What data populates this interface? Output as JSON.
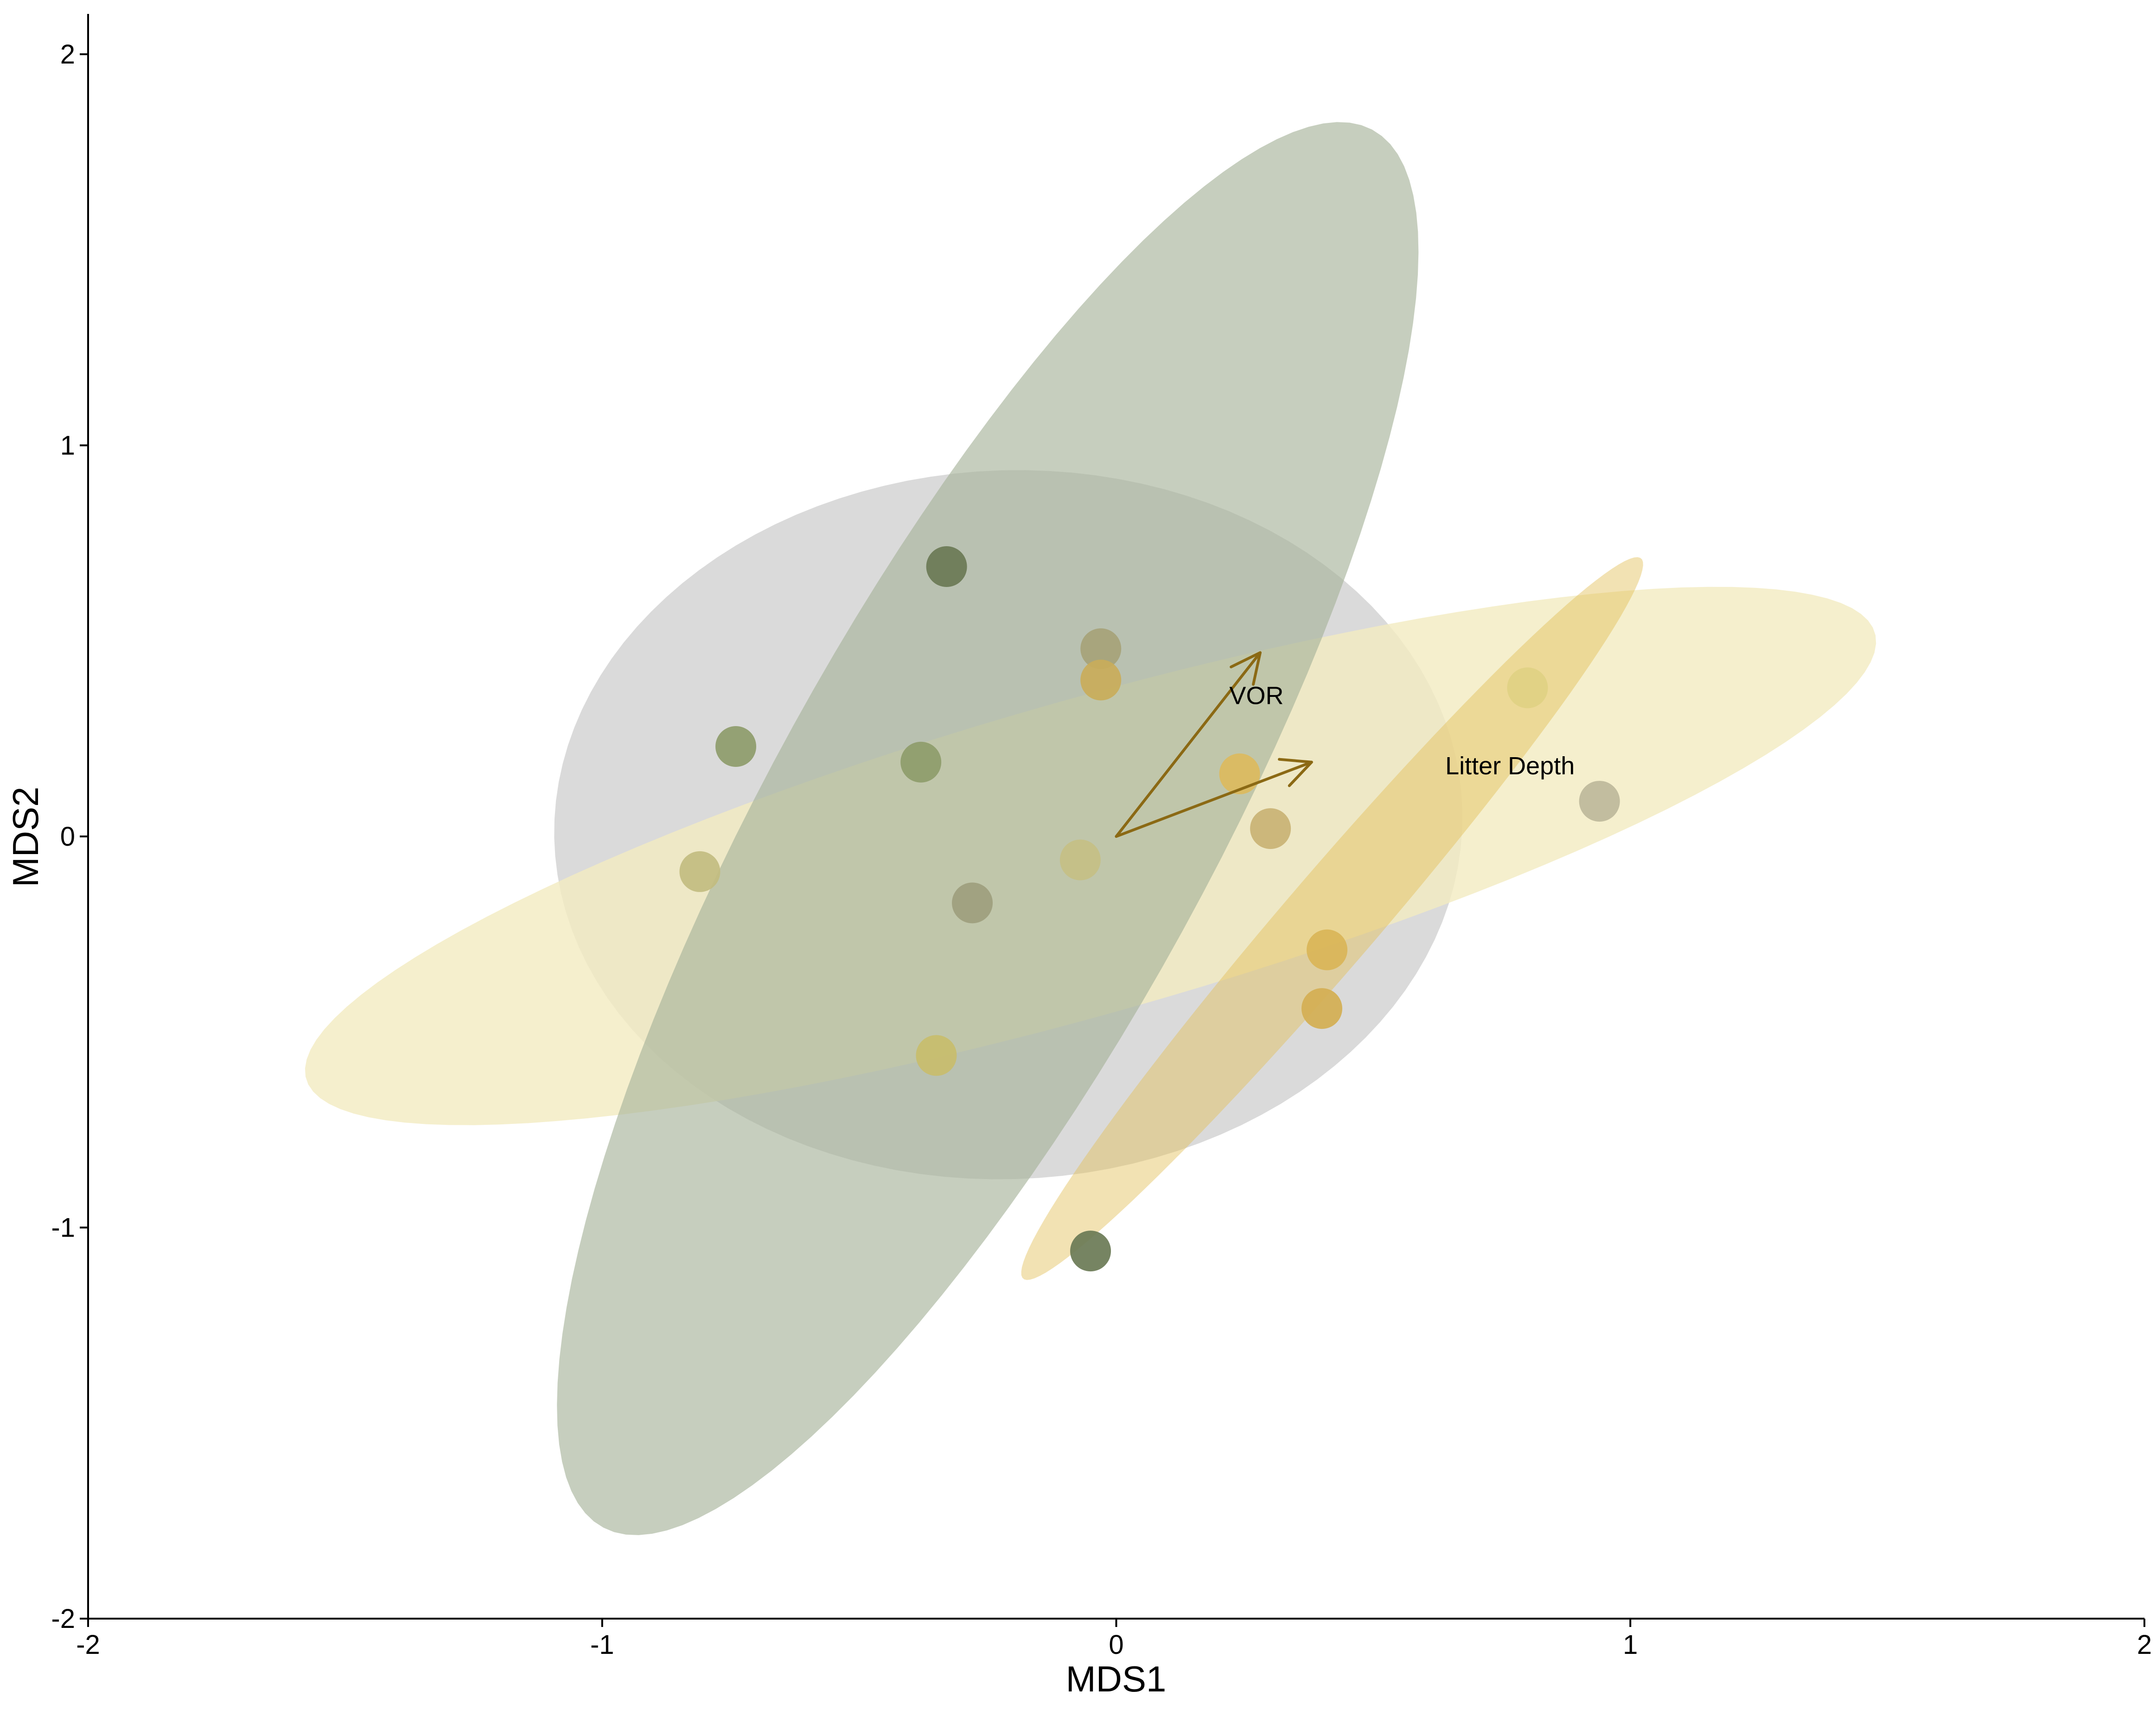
{
  "chart_data": {
    "type": "scatter",
    "title": "",
    "xlabel": "MDS1",
    "ylabel": "MDS2",
    "xlim": [
      -2,
      2
    ],
    "ylim": [
      -2,
      2
    ],
    "xticks": [
      -2,
      -1,
      0,
      1,
      2
    ],
    "yticks": [
      -2,
      -1,
      0,
      1,
      2
    ],
    "xtick_labels": [
      "-2",
      "-1",
      "0",
      "1",
      "2"
    ],
    "ytick_labels": [
      "-2",
      "-1",
      "0",
      "1",
      "2"
    ],
    "grid": false,
    "legend": "none",
    "ellipses": [
      {
        "cx": -0.21,
        "cy": 0.03,
        "rx": 0.88,
        "ry": 0.91,
        "angle": -19.5,
        "color": "#d3d3d3",
        "opacity": 0.85
      },
      {
        "cx": -0.05,
        "cy": -0.05,
        "rx": 1.63,
        "ry": 0.39,
        "angle": 21,
        "color": "#f3ebc0",
        "opacity": 0.8
      },
      {
        "cx": -0.25,
        "cy": 0.02,
        "rx": 1.94,
        "ry": 0.45,
        "angle": 68,
        "color": "#a7b39b",
        "opacity": 0.65
      },
      {
        "cx": 0.42,
        "cy": -0.21,
        "rx": 1.1,
        "ry": 0.1,
        "angle": 57,
        "color": "#e2be56",
        "opacity": 0.45
      }
    ],
    "points": [
      {
        "x": -0.33,
        "y": 0.69,
        "color": "#6a7a55"
      },
      {
        "x": -0.03,
        "y": 0.48,
        "color": "#a6a378"
      },
      {
        "x": -0.03,
        "y": 0.4,
        "color": "#c9ad5a"
      },
      {
        "x": -0.74,
        "y": 0.23,
        "color": "#8e9c6b"
      },
      {
        "x": -0.38,
        "y": 0.19,
        "color": "#8e9c6b"
      },
      {
        "x": -0.81,
        "y": -0.09,
        "color": "#c2bc80"
      },
      {
        "x": -0.28,
        "y": -0.17,
        "color": "#9e9e7e"
      },
      {
        "x": -0.07,
        "y": -0.06,
        "color": "#c6bf85"
      },
      {
        "x": 0.24,
        "y": 0.16,
        "color": "#dcba5e"
      },
      {
        "x": 0.3,
        "y": 0.02,
        "color": "#c9b274"
      },
      {
        "x": 0.41,
        "y": -0.29,
        "color": "#d9b557"
      },
      {
        "x": 0.4,
        "y": -0.44,
        "color": "#d4af52"
      },
      {
        "x": -0.35,
        "y": -0.56,
        "color": "#c8bd6c"
      },
      {
        "x": 0.8,
        "y": 0.38,
        "color": "#dfd183"
      },
      {
        "x": 0.94,
        "y": 0.09,
        "color": "#bdb89b"
      },
      {
        "x": -0.05,
        "y": -1.06,
        "color": "#6a7a55"
      }
    ],
    "vectors": [
      {
        "label": "VOR",
        "x": 0.28,
        "y": 0.47,
        "label_x": 0.22,
        "label_y": 0.36
      },
      {
        "label": "Litter Depth",
        "x": 0.38,
        "y": 0.19,
        "label_x": 0.64,
        "label_y": 0.18
      }
    ],
    "vector_color": "#8b6914"
  }
}
